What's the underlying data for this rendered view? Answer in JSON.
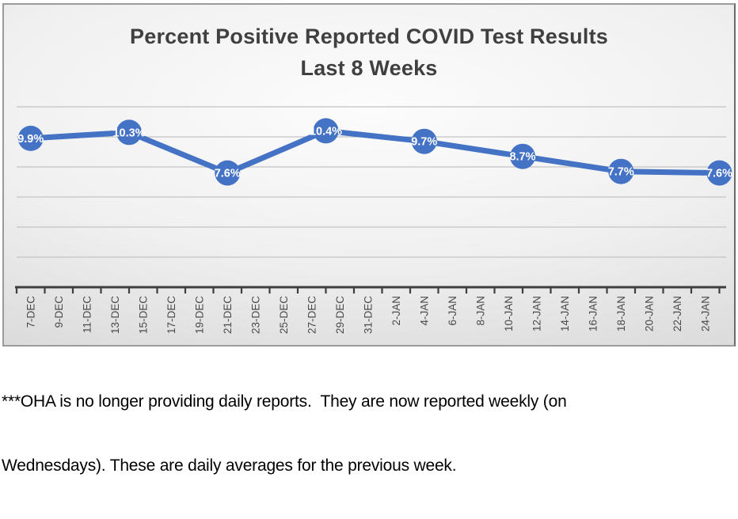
{
  "chart": {
    "title_line1": "Percent Positive Reported COVID Test Results",
    "title_line2": "Last 8 Weeks",
    "title_color": "#404040",
    "border_color": "#9b9b9b",
    "background_center": "#fcfcfc",
    "background_edge": "#cdcdcd"
  },
  "chart_data": {
    "type": "line",
    "title": "Percent Positive Reported COVID Test Results Last 8 Weeks",
    "legend": "none",
    "grid": "horizontal",
    "x_tick_labels": [
      "7-DEC",
      "9-DEC",
      "11-DEC",
      "13-DEC",
      "15-DEC",
      "17-DEC",
      "19-DEC",
      "21-DEC",
      "23-DEC",
      "25-DEC",
      "27-DEC",
      "29-DEC",
      "31-DEC",
      "2-JAN",
      "4-JAN",
      "6-JAN",
      "8-JAN",
      "10-JAN",
      "12-JAN",
      "14-JAN",
      "16-JAN",
      "18-JAN",
      "20-JAN",
      "22-JAN",
      "24-JAN"
    ],
    "y_axis": {
      "min": 0,
      "max": 12,
      "gridline_step_pct": 2,
      "tick_labels_visible": false
    },
    "series": [
      {
        "name": "percent-positive",
        "color": "#4472C4",
        "points": [
          {
            "date": "7-DEC",
            "value": 9.9,
            "label": "9.9%"
          },
          {
            "date": "14-DEC",
            "value": 10.3,
            "label": "10.3%"
          },
          {
            "date": "21-DEC",
            "value": 7.6,
            "label": "7.6%"
          },
          {
            "date": "28-DEC",
            "value": 10.4,
            "label": "10.4%"
          },
          {
            "date": "4-JAN",
            "value": 9.7,
            "label": "9.7%"
          },
          {
            "date": "11-JAN",
            "value": 8.7,
            "label": "8.7%"
          },
          {
            "date": "18-JAN",
            "value": 7.7,
            "label": "7.7%"
          },
          {
            "date": "25-JAN",
            "value": 7.6,
            "label": "7.6%"
          }
        ]
      }
    ],
    "colors": {
      "line": "#4472C4",
      "marker_fill": "#4472C4",
      "data_label_text": "#ffffff",
      "axis": "#3f3f3f",
      "gridline": "#c3c3c3",
      "tick_label_text": "#4a4a4a"
    }
  },
  "footnote": {
    "line1": "***OHA is no longer providing daily reports.  They are now reported weekly (on",
    "line2": "Wednesdays). These are daily averages for the previous week."
  }
}
